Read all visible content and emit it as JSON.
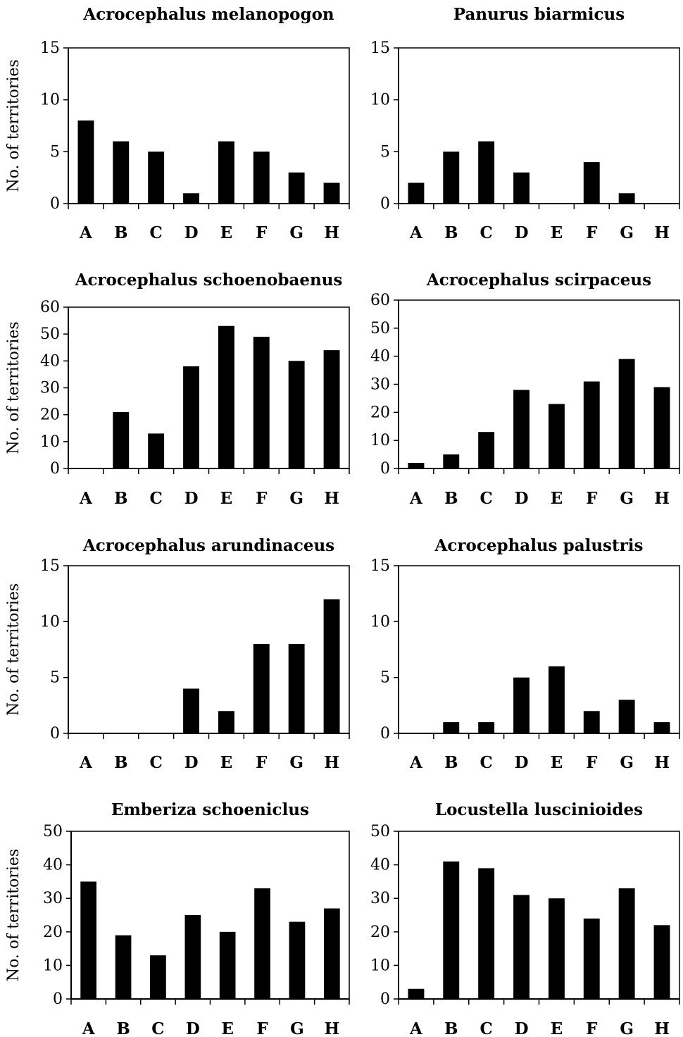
{
  "chart_data": [
    {
      "type": "bar",
      "title": "Acrocephalus melanopogon",
      "ylabel": "No. of territories",
      "categories": [
        "A",
        "B",
        "C",
        "D",
        "E",
        "F",
        "G",
        "H"
      ],
      "values": [
        8,
        6,
        5,
        1,
        6,
        5,
        3,
        2
      ],
      "ylim": [
        0,
        15
      ],
      "yticks": [
        0,
        5,
        10,
        15
      ],
      "grid": false,
      "color": "#000000"
    },
    {
      "type": "bar",
      "title": "Panurus biarmicus",
      "ylabel": "",
      "categories": [
        "A",
        "B",
        "C",
        "D",
        "E",
        "F",
        "G",
        "H"
      ],
      "values": [
        2,
        5,
        6,
        3,
        0,
        4,
        1,
        0
      ],
      "ylim": [
        0,
        15
      ],
      "yticks": [
        0,
        5,
        10,
        15
      ],
      "grid": false,
      "color": "#000000"
    },
    {
      "type": "bar",
      "title": "Acrocephalus schoenobaenus",
      "ylabel": "No. of territories",
      "categories": [
        "A",
        "B",
        "C",
        "D",
        "E",
        "F",
        "G",
        "H"
      ],
      "values": [
        0,
        21,
        13,
        38,
        53,
        49,
        40,
        44
      ],
      "ylim": [
        0,
        60
      ],
      "yticks": [
        0,
        10,
        20,
        30,
        40,
        50,
        60
      ],
      "grid": false,
      "color": "#000000"
    },
    {
      "type": "bar",
      "title": "Acrocephalus scirpaceus",
      "ylabel": "",
      "categories": [
        "A",
        "B",
        "C",
        "D",
        "E",
        "F",
        "G",
        "H"
      ],
      "values": [
        2,
        5,
        13,
        28,
        23,
        31,
        39,
        29
      ],
      "ylim": [
        0,
        60
      ],
      "yticks": [
        0,
        10,
        20,
        30,
        40,
        50,
        60
      ],
      "grid": false,
      "color": "#000000"
    },
    {
      "type": "bar",
      "title": "Acrocephalus arundinaceus",
      "ylabel": "No. of territories",
      "categories": [
        "A",
        "B",
        "C",
        "D",
        "E",
        "F",
        "G",
        "H"
      ],
      "values": [
        0,
        0,
        0,
        4,
        2,
        8,
        8,
        12
      ],
      "ylim": [
        0,
        15
      ],
      "yticks": [
        0,
        5,
        10,
        15
      ],
      "grid": false,
      "color": "#000000"
    },
    {
      "type": "bar",
      "title": "Acrocephalus palustris",
      "ylabel": "",
      "categories": [
        "A",
        "B",
        "C",
        "D",
        "E",
        "F",
        "G",
        "H"
      ],
      "values": [
        0,
        1,
        1,
        5,
        6,
        2,
        3,
        1
      ],
      "ylim": [
        0,
        15
      ],
      "yticks": [
        0,
        5,
        10,
        15
      ],
      "grid": false,
      "color": "#000000"
    },
    {
      "type": "bar",
      "title": "Emberiza schoeniclus",
      "ylabel": "No. of territories",
      "categories": [
        "A",
        "B",
        "C",
        "D",
        "E",
        "F",
        "G",
        "H"
      ],
      "values": [
        35,
        19,
        13,
        25,
        20,
        33,
        23,
        27
      ],
      "ylim": [
        0,
        50
      ],
      "yticks": [
        0,
        10,
        20,
        30,
        40,
        50
      ],
      "grid": false,
      "color": "#000000"
    },
    {
      "type": "bar",
      "title": "Locustella luscinioides",
      "ylabel": "",
      "categories": [
        "A",
        "B",
        "C",
        "D",
        "E",
        "F",
        "G",
        "H"
      ],
      "values": [
        3,
        41,
        39,
        31,
        30,
        24,
        33,
        22
      ],
      "ylim": [
        0,
        50
      ],
      "yticks": [
        0,
        10,
        20,
        30,
        40,
        50
      ],
      "grid": false,
      "color": "#000000"
    }
  ]
}
